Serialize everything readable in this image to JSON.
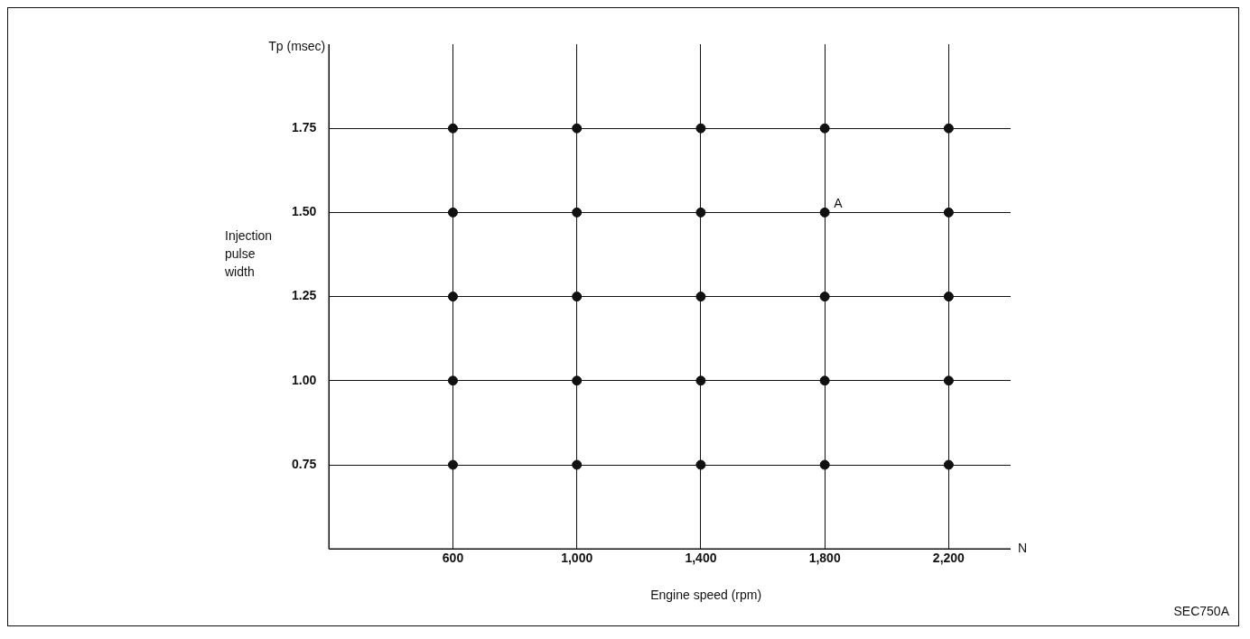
{
  "chart_data": {
    "type": "scatter",
    "xlabel": "Engine speed (rpm)",
    "ylabel": "Injection pulse width",
    "x": [
      600,
      1000,
      1400,
      1800,
      2200,
      600,
      1000,
      1400,
      1800,
      2200,
      600,
      1000,
      1400,
      1800,
      2200,
      600,
      1000,
      1400,
      1800,
      2200,
      600,
      1000,
      1400,
      1800,
      2200
    ],
    "values": [
      1.75,
      1.75,
      1.75,
      1.75,
      1.75,
      1.5,
      1.5,
      1.5,
      1.5,
      1.5,
      1.25,
      1.25,
      1.25,
      1.25,
      1.25,
      1.0,
      1.0,
      1.0,
      1.0,
      1.0,
      0.75,
      0.75,
      0.75,
      0.75,
      0.75
    ],
    "color": "#111111",
    "marker": "circle",
    "grid": true,
    "xlim": [
      200,
      2400
    ],
    "xticks": [
      600,
      {
        "value": 1000,
        "label": "1,000"
      },
      {
        "value": 1400,
        "label": "1,400"
      },
      {
        "value": 1800,
        "label": "1,800"
      },
      {
        "value": 2200,
        "label": "2,200"
      }
    ],
    "ylim": [
      0.5,
      2.0
    ],
    "yticks": [
      {
        "value": 0.75,
        "label": "0.75"
      },
      {
        "value": 1.0,
        "label": "1.00"
      },
      {
        "value": 1.25,
        "label": "1.25"
      },
      {
        "value": 1.5,
        "label": "1.50"
      },
      {
        "value": 1.75,
        "label": "1.75"
      }
    ],
    "annotations": [
      {
        "text": "A",
        "x": 1800,
        "y": 1.5
      },
      "Tp (msec)",
      "N",
      "SEC750A"
    ]
  }
}
